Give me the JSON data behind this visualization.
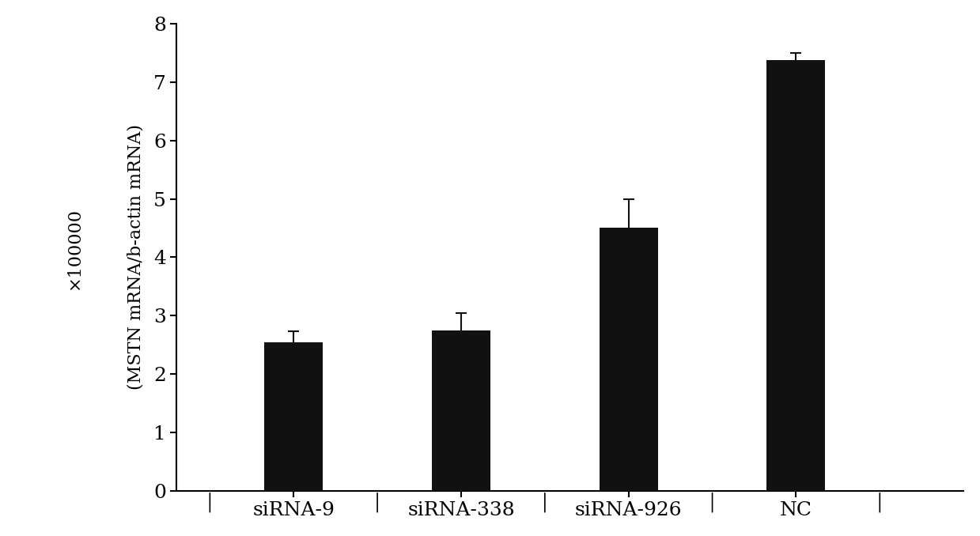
{
  "categories": [
    "siRNA-9",
    "siRNA-338",
    "siRNA-926",
    "NC"
  ],
  "values": [
    2.55,
    2.75,
    4.5,
    7.38
  ],
  "errors": [
    0.18,
    0.3,
    0.5,
    0.12
  ],
  "bar_color": "#111111",
  "bar_width": 0.35,
  "ylabel": "(MSTN mRNA/b-actin mRNA)",
  "ylabel2": "×100000",
  "ylim": [
    0,
    8
  ],
  "yticks": [
    0,
    1,
    2,
    3,
    4,
    5,
    6,
    7,
    8
  ],
  "background_color": "#ffffff",
  "tick_fontsize": 18,
  "label_fontsize": 16,
  "xlabel_fontsize": 18,
  "error_capsize": 5,
  "error_linewidth": 1.5,
  "error_color": "#111111",
  "x_positions": [
    1,
    2,
    3,
    4
  ],
  "xlim": [
    0.3,
    5.0
  ]
}
